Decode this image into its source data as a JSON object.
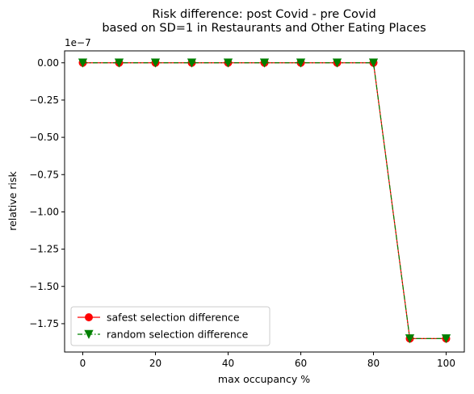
{
  "chart_data": {
    "type": "line",
    "title": "Risk difference: post Covid - pre Covid",
    "subtitle": "based on SD=1 in Restaurants and Other Eating Places",
    "xlabel": "max occupancy %",
    "ylabel": "relative risk",
    "y_offset_label": "1e−7",
    "x": [
      0,
      10,
      20,
      30,
      40,
      50,
      60,
      70,
      80,
      90,
      100
    ],
    "xlim": [
      -5,
      105
    ],
    "ylim": [
      -1.94,
      0.08
    ],
    "y_scale_factor": 1e-07,
    "x_ticks": [
      0,
      20,
      40,
      60,
      80,
      100
    ],
    "y_ticks": [
      0.0,
      -0.25,
      -0.5,
      -0.75,
      -1.0,
      -1.25,
      -1.5,
      -1.75
    ],
    "x_tick_labels": [
      "0",
      "20",
      "40",
      "60",
      "80",
      "100"
    ],
    "y_tick_labels": [
      "0.00",
      "−0.25",
      "−0.50",
      "−0.75",
      "−1.00",
      "−1.25",
      "−1.50",
      "−1.75"
    ],
    "grid": false,
    "legend_position": "lower-left",
    "series": [
      {
        "name": "safest selection difference",
        "values": [
          0,
          0,
          0,
          0,
          0,
          0,
          0,
          0,
          0,
          -1.85,
          -1.85
        ],
        "color": "#ff0000",
        "marker": "circle",
        "line_style": "solid"
      },
      {
        "name": "random selection difference",
        "values": [
          0,
          0,
          0,
          0,
          0,
          0,
          0,
          0,
          0,
          -1.85,
          -1.85
        ],
        "color": "#008000",
        "marker": "triangle-down",
        "line_style": "dashdot"
      }
    ]
  }
}
